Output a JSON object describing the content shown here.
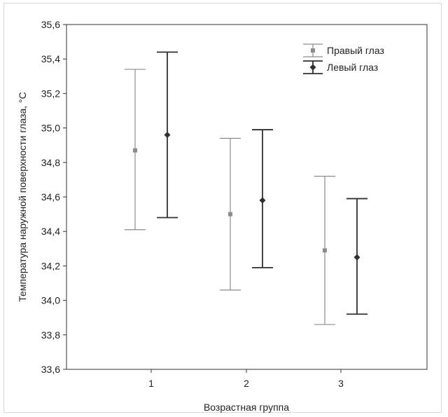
{
  "chart_data": {
    "type": "errorbar",
    "xlabel": "Возрастная группа",
    "ylabel": "Температура наружной поверхности глаза, °C",
    "ylim": [
      33.6,
      35.6
    ],
    "yticks": [
      33.6,
      33.8,
      34.0,
      34.2,
      34.4,
      34.6,
      34.8,
      35.0,
      35.2,
      35.4,
      35.6
    ],
    "ytick_labels": [
      "33,6",
      "33,8",
      "34,0",
      "34,2",
      "34,4",
      "34,6",
      "34,8",
      "35,0",
      "35,2",
      "35,4",
      "35,6"
    ],
    "categories": [
      "1",
      "2",
      "3"
    ],
    "legend_position": "top-right",
    "series": [
      {
        "name": "Правый глаз",
        "color": "#8c8c8c",
        "marker": "square",
        "mean": [
          34.87,
          34.5,
          34.29
        ],
        "lower": [
          34.41,
          34.06,
          33.86
        ],
        "upper": [
          35.34,
          34.94,
          34.72
        ]
      },
      {
        "name": "Левый глаз",
        "color": "#303030",
        "marker": "diamond",
        "mean": [
          34.96,
          34.58,
          34.25
        ],
        "lower": [
          34.48,
          34.19,
          33.92
        ],
        "upper": [
          35.44,
          34.99,
          34.59
        ]
      }
    ]
  }
}
